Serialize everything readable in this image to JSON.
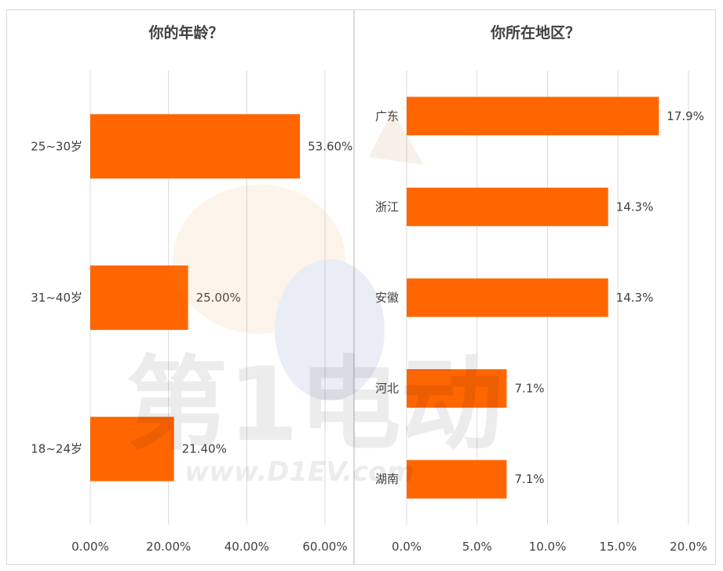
{
  "colors": {
    "bar": "#ff6600",
    "grid": "#d9d9d9",
    "text": "#404040"
  },
  "watermark": {
    "text_cn": "第1电动",
    "url": "www.D1EV.com"
  },
  "chart_data": [
    {
      "type": "bar",
      "orientation": "horizontal",
      "title": "你的年龄？",
      "categories": [
        "25~30岁",
        "31~40岁",
        "18~24岁"
      ],
      "values": [
        53.6,
        25.0,
        21.4
      ],
      "value_labels": [
        "53.60%",
        "25.00%",
        "21.40%"
      ],
      "xticks": [
        "0.00%",
        "20.00%",
        "40.00%",
        "60.00%"
      ],
      "xlim": [
        0,
        60
      ],
      "grid": true,
      "legend": "none"
    },
    {
      "type": "bar",
      "orientation": "horizontal",
      "title": "你所在地区？",
      "categories": [
        "广东",
        "浙江",
        "安徽",
        "河北",
        "湖南"
      ],
      "values": [
        17.9,
        14.3,
        14.3,
        7.1,
        7.1
      ],
      "value_labels": [
        "17.9%",
        "14.3%",
        "14.3%",
        "7.1%",
        "7.1%"
      ],
      "xticks": [
        "0.0%",
        "5.0%",
        "10.0%",
        "15.0%",
        "20.0%"
      ],
      "xlim": [
        0,
        20
      ],
      "grid": true,
      "legend": "none"
    }
  ]
}
